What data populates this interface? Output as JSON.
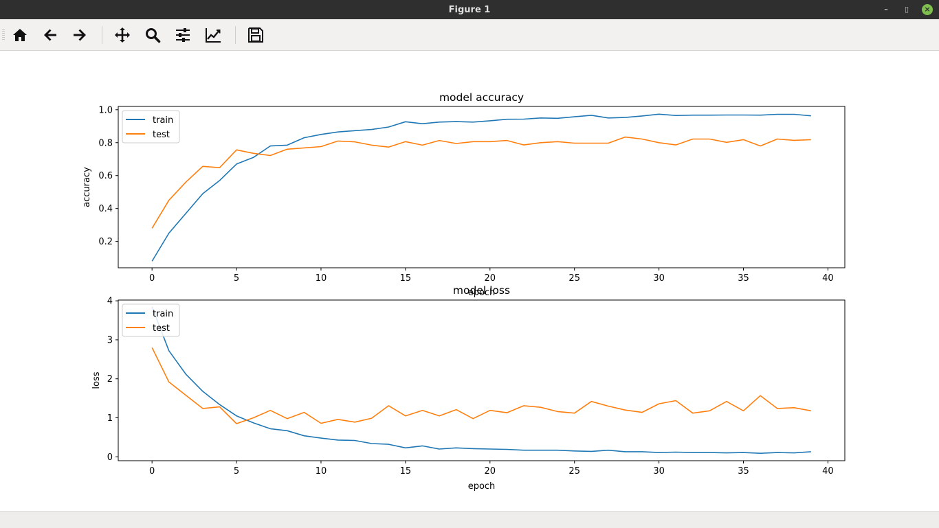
{
  "window": {
    "title": "Figure 1",
    "controls": [
      "minimize-icon",
      "restore-icon",
      "close-icon"
    ]
  },
  "toolbar": {
    "buttons": [
      {
        "name": "home-button",
        "icon": "home-icon"
      },
      {
        "name": "back-button",
        "icon": "arrow-left-icon"
      },
      {
        "name": "forward-button",
        "icon": "arrow-right-icon"
      },
      {
        "name": "pan-button",
        "icon": "move-icon"
      },
      {
        "name": "zoom-button",
        "icon": "magnifier-icon"
      },
      {
        "name": "subplots-button",
        "icon": "sliders-icon"
      },
      {
        "name": "edit-axes-button",
        "icon": "line-chart-icon"
      },
      {
        "name": "save-button",
        "icon": "floppy-disk-icon"
      }
    ]
  },
  "chart_data": [
    {
      "type": "line",
      "title": "model accuracy",
      "xlabel": "epoch",
      "ylabel": "accuracy",
      "xlim": [
        -2,
        41
      ],
      "ylim": [
        0.04,
        1.02
      ],
      "xticks": [
        0,
        5,
        10,
        15,
        20,
        25,
        30,
        35,
        40
      ],
      "yticks": [
        0.2,
        0.4,
        0.6,
        0.8,
        1.0
      ],
      "ytick_labels": [
        "0.2",
        "0.4",
        "0.6",
        "0.8",
        "1.0"
      ],
      "grid": false,
      "legend_position": "upper-left",
      "x": [
        0,
        1,
        2,
        3,
        4,
        5,
        6,
        7,
        8,
        9,
        10,
        11,
        12,
        13,
        14,
        15,
        16,
        17,
        18,
        19,
        20,
        21,
        22,
        23,
        24,
        25,
        26,
        27,
        28,
        29,
        30,
        31,
        32,
        33,
        34,
        35,
        36,
        37,
        38,
        39
      ],
      "series": [
        {
          "name": "train",
          "color": "#1f77b4",
          "values": [
            0.08,
            0.25,
            0.37,
            0.49,
            0.57,
            0.67,
            0.71,
            0.78,
            0.785,
            0.83,
            0.85,
            0.865,
            0.873,
            0.88,
            0.895,
            0.927,
            0.915,
            0.925,
            0.928,
            0.925,
            0.933,
            0.942,
            0.943,
            0.95,
            0.948,
            0.957,
            0.966,
            0.95,
            0.953,
            0.962,
            0.973,
            0.965,
            0.967,
            0.967,
            0.968,
            0.968,
            0.967,
            0.972,
            0.972,
            0.963
          ]
        },
        {
          "name": "test",
          "color": "#ff7f0e",
          "values": [
            0.28,
            0.45,
            0.56,
            0.656,
            0.648,
            0.756,
            0.735,
            0.722,
            0.76,
            0.768,
            0.776,
            0.81,
            0.805,
            0.785,
            0.773,
            0.806,
            0.785,
            0.813,
            0.795,
            0.806,
            0.806,
            0.813,
            0.786,
            0.8,
            0.806,
            0.797,
            0.797,
            0.797,
            0.834,
            0.822,
            0.8,
            0.786,
            0.822,
            0.822,
            0.802,
            0.818,
            0.78,
            0.822,
            0.814,
            0.818
          ]
        }
      ]
    },
    {
      "type": "line",
      "title": "model loss",
      "xlabel": "epoch",
      "ylabel": "loss",
      "xlim": [
        -2,
        41
      ],
      "ylim": [
        -0.1,
        4.02
      ],
      "xticks": [
        0,
        5,
        10,
        15,
        20,
        25,
        30,
        35,
        40
      ],
      "yticks": [
        0,
        1,
        2,
        3,
        4
      ],
      "ytick_labels": [
        "0",
        "1",
        "2",
        "3",
        "4"
      ],
      "grid": false,
      "legend_position": "upper-left",
      "x": [
        0,
        1,
        2,
        3,
        4,
        5,
        6,
        7,
        8,
        9,
        10,
        11,
        12,
        13,
        14,
        15,
        16,
        17,
        18,
        19,
        20,
        21,
        22,
        23,
        24,
        25,
        26,
        27,
        28,
        29,
        30,
        31,
        32,
        33,
        34,
        35,
        36,
        37,
        38,
        39
      ],
      "series": [
        {
          "name": "train",
          "color": "#1f77b4",
          "values": [
            3.85,
            2.72,
            2.12,
            1.68,
            1.34,
            1.05,
            0.87,
            0.72,
            0.67,
            0.54,
            0.48,
            0.43,
            0.42,
            0.34,
            0.32,
            0.23,
            0.28,
            0.2,
            0.23,
            0.21,
            0.2,
            0.19,
            0.17,
            0.17,
            0.17,
            0.15,
            0.14,
            0.17,
            0.13,
            0.13,
            0.11,
            0.12,
            0.11,
            0.11,
            0.1,
            0.11,
            0.09,
            0.11,
            0.1,
            0.13
          ]
        },
        {
          "name": "test",
          "color": "#ff7f0e",
          "values": [
            2.8,
            1.92,
            1.58,
            1.24,
            1.28,
            0.85,
            1.0,
            1.19,
            0.98,
            1.14,
            0.86,
            0.96,
            0.89,
            0.99,
            1.31,
            1.05,
            1.19,
            1.05,
            1.21,
            0.98,
            1.19,
            1.13,
            1.31,
            1.27,
            1.16,
            1.12,
            1.42,
            1.3,
            1.2,
            1.14,
            1.36,
            1.44,
            1.12,
            1.18,
            1.42,
            1.18,
            1.57,
            1.24,
            1.26,
            1.18
          ]
        }
      ]
    }
  ]
}
